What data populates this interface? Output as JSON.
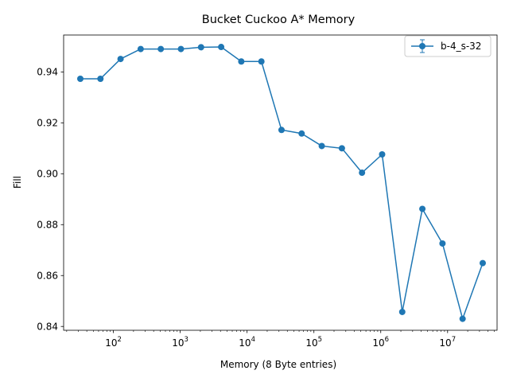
{
  "chart_data": {
    "type": "line",
    "title": "Bucket Cuckoo A* Memory",
    "xlabel": "Memory (8 Byte entries)",
    "ylabel": "Fill",
    "xscale": "log",
    "xlim": [
      18,
      55000000
    ],
    "ylim": [
      0.8385,
      0.9545
    ],
    "xticks": [
      {
        "value": 100,
        "base": "10",
        "exp": "2"
      },
      {
        "value": 1000,
        "base": "10",
        "exp": "3"
      },
      {
        "value": 10000,
        "base": "10",
        "exp": "4"
      },
      {
        "value": 100000,
        "base": "10",
        "exp": "5"
      },
      {
        "value": 1000000,
        "base": "10",
        "exp": "6"
      },
      {
        "value": 10000000,
        "base": "10",
        "exp": "7"
      }
    ],
    "yticks": [
      {
        "value": 0.84,
        "label": "0.84"
      },
      {
        "value": 0.86,
        "label": "0.86"
      },
      {
        "value": 0.88,
        "label": "0.88"
      },
      {
        "value": 0.9,
        "label": "0.90"
      },
      {
        "value": 0.92,
        "label": "0.92"
      },
      {
        "value": 0.94,
        "label": "0.94"
      }
    ],
    "grid": false,
    "legend_position": "top-right",
    "series": [
      {
        "name": "b-4_s-32",
        "color": "#1f77b4",
        "x": [
          32,
          64,
          128,
          256,
          512,
          1024,
          2048,
          4096,
          8192,
          16384,
          32768,
          65536,
          131072,
          262144,
          524288,
          1048576,
          2097152,
          4194304,
          8388608,
          16777216,
          33554432
        ],
        "y": [
          0.9373,
          0.9373,
          0.9451,
          0.949,
          0.949,
          0.949,
          0.9497,
          0.9498,
          0.9441,
          0.9441,
          0.9172,
          0.9158,
          0.9109,
          0.91,
          0.9004,
          0.9076,
          0.8457,
          0.8862,
          0.8726,
          0.843,
          0.8649
        ]
      }
    ]
  }
}
